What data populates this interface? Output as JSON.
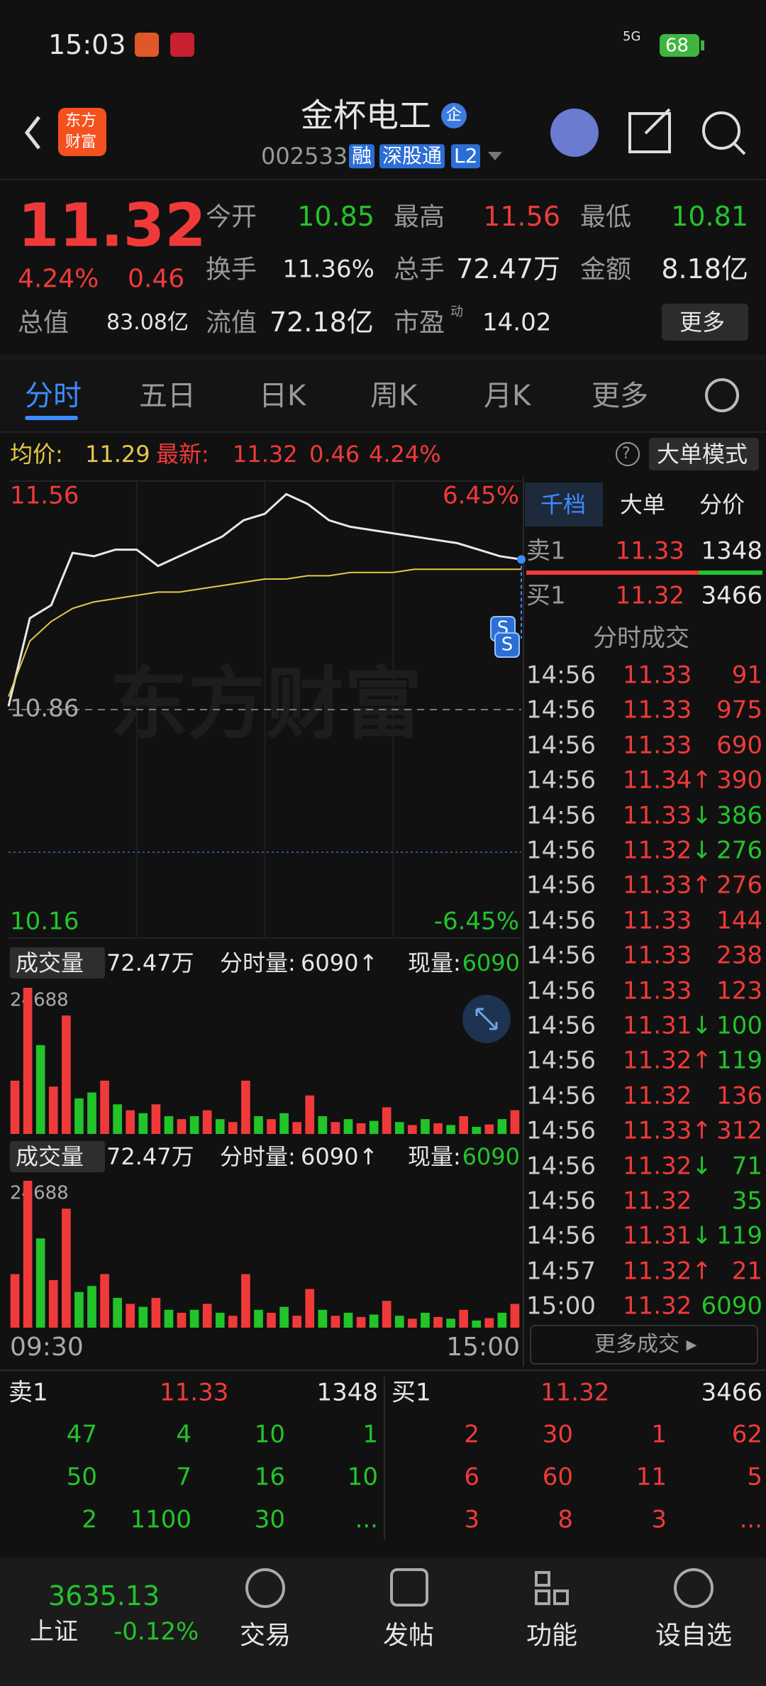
{
  "status_bar": {
    "time": "15:03",
    "network": "5G",
    "battery": "68"
  },
  "header": {
    "logo": [
      "东方",
      "财富"
    ],
    "name": "金杯电工",
    "badge": "企",
    "code": "002533",
    "tags": [
      "融",
      "深股通",
      "L2"
    ]
  },
  "quote": {
    "price": "11.32",
    "change_pct": "4.24%",
    "change": "0.46",
    "row1": [
      {
        "label": "今开",
        "value": "10.85"
      },
      {
        "label": "最高",
        "value": "11.56"
      },
      {
        "label": "最低",
        "value": "10.81"
      }
    ],
    "row2": [
      {
        "label": "换手",
        "value": "11.36%"
      },
      {
        "label": "总手",
        "value": "72.47万"
      },
      {
        "label": "金额",
        "value": "8.18亿"
      }
    ],
    "row3": [
      {
        "label": "总值",
        "value": "83.08亿"
      },
      {
        "label": "流值",
        "value": "72.18亿"
      },
      {
        "label": "市盈",
        "sup": "动",
        "value": "14.02"
      }
    ],
    "more": "更多"
  },
  "tabs": [
    "分时",
    "五日",
    "日K",
    "周K",
    "月K",
    "更多"
  ],
  "info_line": {
    "avg_label": "均价:",
    "avg": "11.29",
    "latest_label": "最新:",
    "latest": "11.32",
    "change": "0.46",
    "pct": "4.24%",
    "help": "?",
    "mode_button": "大单模式"
  },
  "chart_data": [
    {
      "type": "line",
      "x": [
        0,
        10,
        20,
        30,
        40,
        50,
        60,
        70,
        80,
        90,
        100,
        110,
        120,
        130,
        140,
        150,
        160,
        170,
        180,
        190,
        200,
        210,
        220,
        230,
        240
      ],
      "xlim": [
        0,
        240
      ],
      "xticks": [
        {
          "value": 0,
          "label": "09:30"
        },
        {
          "value": 240,
          "label": "15:00"
        }
      ],
      "ylim": [
        10.16,
        11.56
      ],
      "yticks": [
        11.56,
        10.86,
        10.16
      ],
      "y2lim": [
        -6.45,
        6.45
      ],
      "y2ticks": [
        {
          "value": 6.45,
          "label": "6.45%"
        },
        {
          "value": -6.45,
          "label": "-6.45%"
        }
      ],
      "watermark": "东方财富",
      "markers": [
        "S",
        "S"
      ],
      "series": [
        {
          "color": "#e8e8e8",
          "values": [
            10.87,
            11.14,
            11.18,
            11.34,
            11.33,
            11.35,
            11.35,
            11.3,
            11.33,
            11.36,
            11.39,
            11.44,
            11.46,
            11.52,
            11.49,
            11.44,
            11.42,
            11.41,
            11.4,
            11.39,
            11.38,
            11.37,
            11.35,
            11.33,
            11.32
          ]
        },
        {
          "color": "#e6c84a",
          "values": [
            10.9,
            11.07,
            11.13,
            11.17,
            11.19,
            11.2,
            11.21,
            11.22,
            11.22,
            11.23,
            11.24,
            11.25,
            11.26,
            11.26,
            11.27,
            11.27,
            11.28,
            11.28,
            11.28,
            11.29,
            11.29,
            11.29,
            11.29,
            11.29,
            11.29
          ]
        }
      ]
    },
    {
      "type": "bar",
      "ylim": [
        0,
        24688
      ],
      "yticks": [
        24688
      ],
      "values": [
        9000,
        24688,
        15000,
        8000,
        20000,
        6000,
        7000,
        9000,
        5000,
        4000,
        3500,
        5000,
        3000,
        2500,
        3000,
        4000,
        2500,
        2000,
        9000,
        3000,
        2500,
        3500,
        2000,
        6500,
        3000,
        2000,
        2500,
        1800,
        2200,
        4500,
        2000,
        1500,
        2500,
        1800,
        1500,
        3000,
        1200,
        1600,
        2500,
        4000
      ],
      "colors": [
        "#f03a3a",
        "#f03a3a",
        "#22c42a",
        "#f03a3a",
        "#f03a3a",
        "#22c42a",
        "#22c42a",
        "#f03a3a",
        "#22c42a",
        "#f03a3a",
        "#22c42a",
        "#f03a3a",
        "#22c42a",
        "#f03a3a",
        "#22c42a",
        "#f03a3a",
        "#22c42a",
        "#f03a3a",
        "#f03a3a",
        "#22c42a",
        "#f03a3a",
        "#22c42a",
        "#f03a3a",
        "#f03a3a",
        "#22c42a",
        "#f03a3a",
        "#22c42a",
        "#f03a3a",
        "#22c42a",
        "#f03a3a",
        "#22c42a",
        "#f03a3a",
        "#22c42a",
        "#f03a3a",
        "#22c42a",
        "#f03a3a",
        "#22c42a",
        "#f03a3a",
        "#22c42a",
        "#f03a3a"
      ]
    }
  ],
  "volume_header": {
    "label": "成交量",
    "total": "72.47万",
    "tick_label": "分时量:",
    "tick_volume": "6090",
    "tick_arrow": "↑",
    "current_label": "现量:",
    "current": "6090"
  },
  "side_panel": {
    "tabs": [
      "千档",
      "大单",
      "分价"
    ],
    "sell1": {
      "label": "卖1",
      "price": "11.33",
      "volume": "1348"
    },
    "buy1": {
      "label": "买1",
      "price": "11.32",
      "volume": "3466"
    },
    "trades_title": "分时成交",
    "trades": [
      {
        "time": "14:56",
        "price": "11.33",
        "volume": "91",
        "vol_color": "#f03a3a"
      },
      {
        "time": "14:56",
        "price": "11.33",
        "volume": "975",
        "vol_color": "#f03a3a"
      },
      {
        "time": "14:56",
        "price": "11.33",
        "volume": "690",
        "vol_color": "#f03a3a"
      },
      {
        "time": "14:56",
        "price": "11.34",
        "arrow": "↑",
        "volume": "390",
        "vol_color": "#f03a3a"
      },
      {
        "time": "14:56",
        "price": "11.33",
        "arrow": "↓",
        "volume": "386",
        "vol_color": "#22c42a"
      },
      {
        "time": "14:56",
        "price": "11.32",
        "arrow": "↓",
        "volume": "276",
        "vol_color": "#22c42a"
      },
      {
        "time": "14:56",
        "price": "11.33",
        "arrow": "↑",
        "volume": "276",
        "vol_color": "#f03a3a"
      },
      {
        "time": "14:56",
        "price": "11.33",
        "volume": "144",
        "vol_color": "#f03a3a"
      },
      {
        "time": "14:56",
        "price": "11.33",
        "volume": "238",
        "vol_color": "#f03a3a"
      },
      {
        "time": "14:56",
        "price": "11.33",
        "volume": "123",
        "vol_color": "#f03a3a"
      },
      {
        "time": "14:56",
        "price": "11.31",
        "arrow": "↓",
        "volume": "100",
        "vol_color": "#22c42a"
      },
      {
        "time": "14:56",
        "price": "11.32",
        "arrow": "↑",
        "volume": "119",
        "vol_color": "#22c42a"
      },
      {
        "time": "14:56",
        "price": "11.32",
        "volume": "136",
        "vol_color": "#f03a3a"
      },
      {
        "time": "14:56",
        "price": "11.33",
        "arrow": "↑",
        "volume": "312",
        "vol_color": "#f03a3a"
      },
      {
        "time": "14:56",
        "price": "11.32",
        "arrow": "↓",
        "volume": "71",
        "vol_color": "#22c42a"
      },
      {
        "time": "14:56",
        "price": "11.32",
        "volume": "35",
        "vol_color": "#22c42a"
      },
      {
        "time": "14:56",
        "price": "11.31",
        "arrow": "↓",
        "volume": "119",
        "vol_color": "#22c42a"
      },
      {
        "time": "14:57",
        "price": "11.32",
        "arrow": "↑",
        "volume": "21",
        "vol_color": "#f03a3a"
      },
      {
        "time": "15:00",
        "price": "11.32",
        "volume": "6090",
        "vol_color": "#22c42a"
      }
    ],
    "more_trades": "更多成交 ▸"
  },
  "order_book": {
    "sell1": {
      "label": "卖1",
      "price": "11.33",
      "volume": "1348"
    },
    "buy1": {
      "label": "买1",
      "price": "11.32",
      "volume": "3466"
    },
    "sell_queue": [
      [
        "47",
        "4",
        "10",
        "1"
      ],
      [
        "50",
        "7",
        "16",
        "10"
      ],
      [
        "2",
        "1100",
        "30",
        "..."
      ]
    ],
    "buy_queue": [
      [
        "2",
        "30",
        "1",
        "62"
      ],
      [
        "6",
        "60",
        "11",
        "5"
      ],
      [
        "3",
        "8",
        "3",
        "..."
      ]
    ]
  },
  "bottom_nav": {
    "index": {
      "value": "3635.13",
      "name": "上证",
      "pct": "-0.12%"
    },
    "items": [
      "交易",
      "发帖",
      "功能",
      "设自选"
    ]
  }
}
